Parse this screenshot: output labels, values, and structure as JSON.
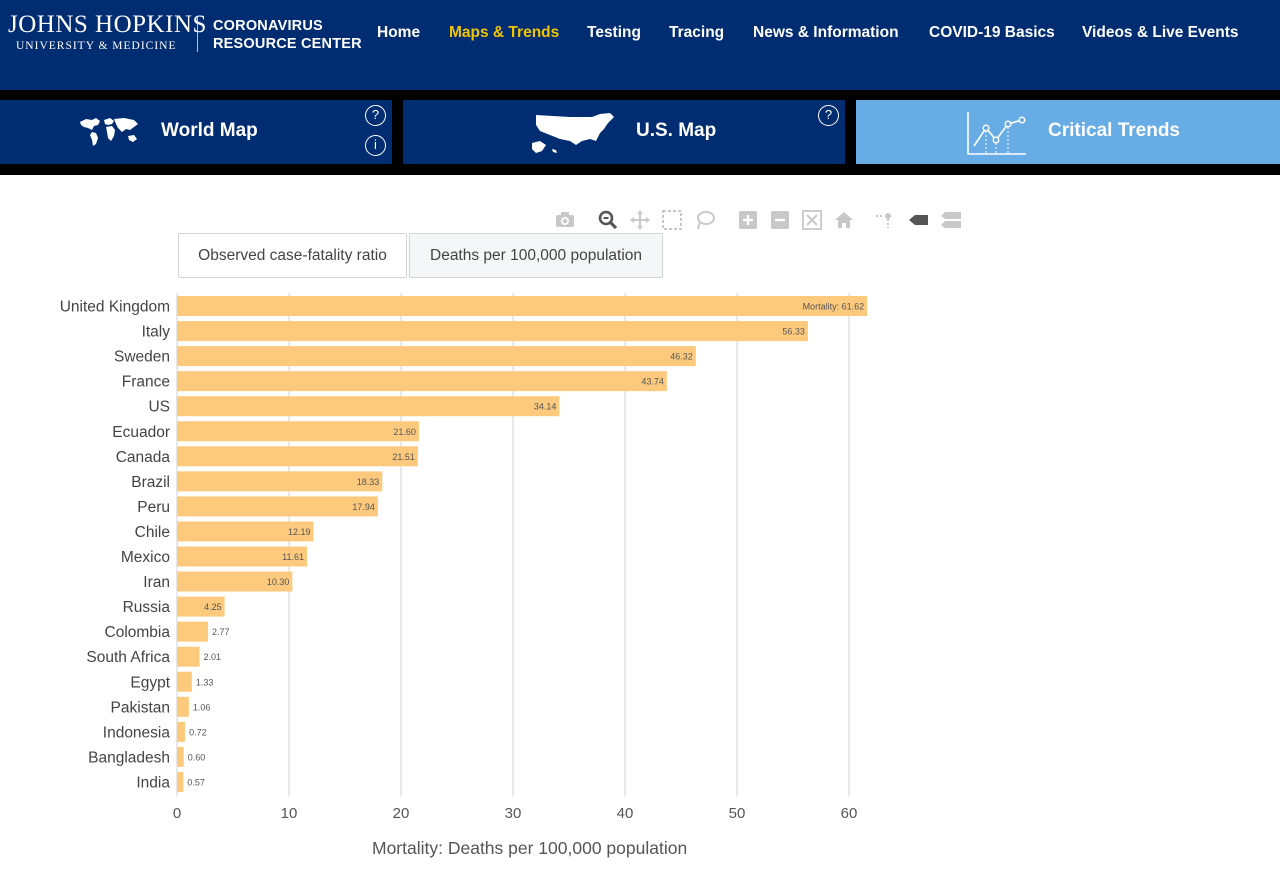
{
  "header": {
    "logo_line1": "JOHNS HOPKINS",
    "logo_line2": "UNIVERSITY & MEDICINE",
    "site_title_line1": "CORONAVIRUS",
    "site_title_line2": "RESOURCE CENTER",
    "nav": [
      {
        "label": "Home",
        "active": false
      },
      {
        "label": "Maps & Trends",
        "active": true
      },
      {
        "label": "Testing",
        "active": false
      },
      {
        "label": "Tracing",
        "active": false
      },
      {
        "label": "News & Information",
        "active": false
      },
      {
        "label": "COVID-19 Basics",
        "active": false
      },
      {
        "label": "Videos & Live Events",
        "active": false
      }
    ]
  },
  "tabs": [
    {
      "label": "World Map",
      "icon": "world-map-icon",
      "active": false
    },
    {
      "label": "U.S. Map",
      "icon": "us-map-icon",
      "active": false
    },
    {
      "label": "Critical Trends",
      "icon": "line-chart-icon",
      "active": true
    }
  ],
  "toggles": [
    {
      "label": "Observed case-fatality ratio",
      "selected": false
    },
    {
      "label": "Deaths per 100,000 population",
      "selected": true
    }
  ],
  "colors": {
    "header_bg": "#002d72",
    "nav_active": "#f1c400",
    "tab_active_bg": "#68ace5",
    "bar": "#fdca7d"
  },
  "chart_data": {
    "type": "bar",
    "orientation": "horizontal",
    "categories": [
      "United Kingdom",
      "Italy",
      "Sweden",
      "France",
      "US",
      "Ecuador",
      "Canada",
      "Brazil",
      "Peru",
      "Chile",
      "Mexico",
      "Iran",
      "Russia",
      "Colombia",
      "South Africa",
      "Egypt",
      "Pakistan",
      "Indonesia",
      "Bangladesh",
      "India"
    ],
    "values": [
      61.62,
      56.33,
      46.32,
      43.74,
      34.14,
      21.6,
      21.51,
      18.33,
      17.94,
      12.19,
      11.61,
      10.3,
      4.25,
      2.77,
      2.01,
      1.33,
      1.06,
      0.72,
      0.6,
      0.57
    ],
    "value_labels": [
      "Mortality: 61.62",
      "56.33",
      "46.32",
      "43.74",
      "34.14",
      "21.60",
      "21.51",
      "18.33",
      "17.94",
      "12.19",
      "11.61",
      "10.30",
      "4.25",
      "2.77",
      "2.01",
      "1.33",
      "1.06",
      "0.72",
      "0.60",
      "0.57"
    ],
    "xlabel": "Mortality: Deaths per 100,000 population",
    "ylabel": "",
    "xlim": [
      0,
      63
    ],
    "xticks": [
      0,
      10,
      20,
      30,
      40,
      50,
      60
    ],
    "grid": true
  }
}
